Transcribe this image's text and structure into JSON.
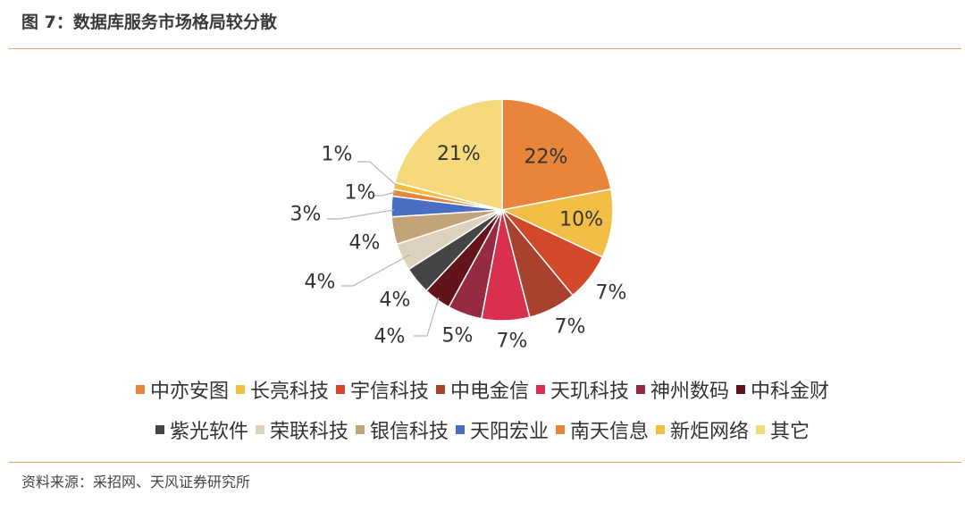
{
  "figure": {
    "title": "图 7：数据库服务市场格局较分散",
    "source": "资料来源：采招网、天风证券研究所"
  },
  "chart_data": {
    "type": "pie",
    "title": "",
    "start_angle_deg": 0,
    "direction": "clockwise",
    "slices": [
      {
        "label": "中亦安图",
        "value": 22,
        "display": "22%",
        "color": "#E8853A"
      },
      {
        "label": "长亮科技",
        "value": 10,
        "display": "10%",
        "color": "#F2BE45"
      },
      {
        "label": "宇信科技",
        "value": 7,
        "display": "7%",
        "color": "#D2492A"
      },
      {
        "label": "中电金信",
        "value": 7,
        "display": "7%",
        "color": "#A9412F"
      },
      {
        "label": "天玑科技",
        "value": 7,
        "display": "7%",
        "color": "#D9304F"
      },
      {
        "label": "神州数码",
        "value": 5,
        "display": "5%",
        "color": "#962A42"
      },
      {
        "label": "中科金财",
        "value": 4,
        "display": "4%",
        "color": "#63141A"
      },
      {
        "label": "紫光软件",
        "value": 4,
        "display": "4%",
        "color": "#454545"
      },
      {
        "label": "荣联科技",
        "value": 4,
        "display": "4%",
        "color": "#DCD2BD"
      },
      {
        "label": "银信科技",
        "value": 4,
        "display": "4%",
        "color": "#C2A37A"
      },
      {
        "label": "天阳宏业",
        "value": 3,
        "display": "3%",
        "color": "#4A6FC2"
      },
      {
        "label": "南天信息",
        "value": 1,
        "display": "1%",
        "color": "#E8853A"
      },
      {
        "label": "新炬网络",
        "value": 1,
        "display": "1%",
        "color": "#F2BE45"
      },
      {
        "label": "其它",
        "value": 21,
        "display": "21%",
        "color": "#F6D97C"
      }
    ],
    "legend_position": "bottom"
  }
}
